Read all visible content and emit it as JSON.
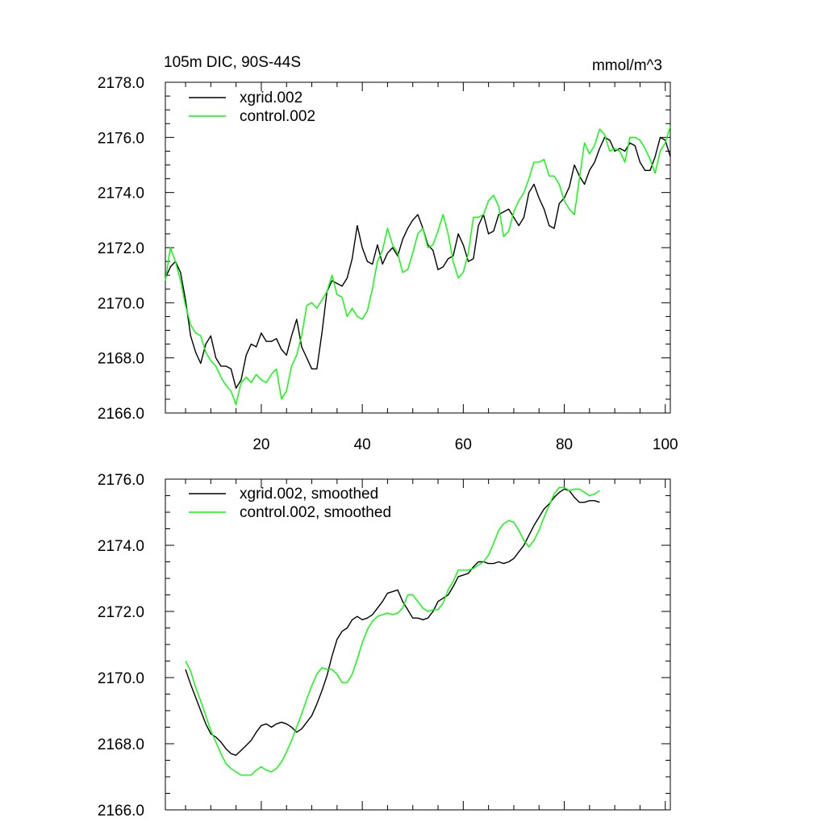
{
  "chart_data": [
    {
      "type": "line",
      "title_left": "105m DIC, 90S-44S",
      "title_right": "mmol/m^3",
      "xlim": [
        1,
        101
      ],
      "ylim": [
        2166.0,
        2178.0
      ],
      "x_major_ticks": [
        20,
        40,
        60,
        80,
        100
      ],
      "x_tick_labels": [
        "20",
        "40",
        "60",
        "80",
        "100"
      ],
      "y_major_ticks": [
        2166,
        2168,
        2170,
        2172,
        2174,
        2176,
        2178
      ],
      "y_tick_labels": [
        "2166.0",
        "2168.0",
        "2170.0",
        "2172.0",
        "2174.0",
        "2176.0",
        "2178.0"
      ],
      "series": [
        {
          "name": "xgrid.002",
          "color": "#000000",
          "x_start": 1,
          "values": [
            2170.9,
            2171.3,
            2171.5,
            2171.1,
            2170.1,
            2168.8,
            2168.2,
            2167.8,
            2168.5,
            2168.8,
            2168.0,
            2167.7,
            2167.7,
            2167.6,
            2166.9,
            2167.2,
            2168.1,
            2168.5,
            2168.4,
            2168.9,
            2168.6,
            2168.6,
            2168.7,
            2168.3,
            2168.1,
            2168.8,
            2169.4,
            2168.4,
            2168.0,
            2167.6,
            2167.6,
            2168.9,
            2170.4,
            2170.8,
            2170.7,
            2170.6,
            2170.9,
            2171.6,
            2172.8,
            2172.0,
            2171.5,
            2171.4,
            2172.1,
            2171.4,
            2171.8,
            2172.0,
            2171.7,
            2172.3,
            2172.7,
            2173.0,
            2173.2,
            2172.7,
            2172.1,
            2171.9,
            2171.2,
            2171.3,
            2171.6,
            2171.7,
            2172.5,
            2172.1,
            2171.5,
            2171.6,
            2172.8,
            2173.2,
            2172.5,
            2172.6,
            2173.2,
            2173.3,
            2173.4,
            2173.1,
            2172.8,
            2173.1,
            2174.0,
            2174.3,
            2173.8,
            2173.4,
            2172.8,
            2172.7,
            2173.6,
            2173.8,
            2174.2,
            2175.0,
            2174.6,
            2174.3,
            2174.8,
            2175.1,
            2175.6,
            2176.0,
            2175.9,
            2175.5,
            2175.6,
            2175.5,
            2175.8,
            2175.7,
            2175.1,
            2174.8,
            2174.8,
            2175.3,
            2176.0,
            2175.9,
            2175.3
          ]
        },
        {
          "name": "control.002",
          "color": "#00ff00",
          "x_start": 1,
          "values": [
            2170.8,
            2172.0,
            2171.5,
            2170.8,
            2169.9,
            2169.2,
            2168.9,
            2168.8,
            2168.2,
            2167.9,
            2167.7,
            2167.3,
            2167.0,
            2166.8,
            2166.3,
            2167.1,
            2167.3,
            2167.1,
            2167.4,
            2167.2,
            2167.1,
            2167.4,
            2167.6,
            2166.5,
            2166.8,
            2167.7,
            2168.1,
            2168.8,
            2169.9,
            2170.0,
            2169.8,
            2170.1,
            2170.4,
            2171.0,
            2170.3,
            2170.2,
            2169.5,
            2169.8,
            2169.5,
            2169.4,
            2169.7,
            2170.5,
            2171.5,
            2171.9,
            2172.7,
            2172.1,
            2171.8,
            2171.1,
            2171.2,
            2171.8,
            2172.5,
            2172.7,
            2172.0,
            2172.1,
            2172.6,
            2173.2,
            2172.5,
            2171.5,
            2170.9,
            2171.1,
            2171.8,
            2173.1,
            2173.1,
            2173.2,
            2173.7,
            2173.9,
            2173.5,
            2172.4,
            2172.6,
            2173.3,
            2173.7,
            2174.0,
            2174.5,
            2175.1,
            2175.1,
            2175.2,
            2174.6,
            2174.6,
            2174.3,
            2173.7,
            2173.4,
            2173.2,
            2174.5,
            2175.8,
            2175.4,
            2175.7,
            2176.3,
            2176.1,
            2175.5,
            2175.6,
            2175.5,
            2175.1,
            2176.0,
            2176.0,
            2175.9,
            2175.6,
            2175.2,
            2174.7,
            2175.5,
            2175.8,
            2176.4
          ]
        }
      ]
    },
    {
      "type": "line",
      "xlim": [
        1,
        101
      ],
      "ylim": [
        2166.0,
        2176.0
      ],
      "x_major_ticks": [
        20,
        40,
        60,
        80,
        100
      ],
      "y_major_ticks": [
        2166,
        2168,
        2170,
        2172,
        2174,
        2176
      ],
      "y_tick_labels": [
        "2166.0",
        "2168.0",
        "2170.0",
        "2172.0",
        "2174.0",
        "2176.0"
      ],
      "series": [
        {
          "name": "xgrid.002, smoothed",
          "color": "#000000",
          "x_start": 5,
          "values": [
            2170.25,
            2169.8,
            2169.4,
            2169.0,
            2168.6,
            2168.3,
            2168.2,
            2168.05,
            2167.85,
            2167.7,
            2167.65,
            2167.8,
            2167.95,
            2168.1,
            2168.35,
            2168.55,
            2168.6,
            2168.5,
            2168.6,
            2168.65,
            2168.6,
            2168.5,
            2168.35,
            2168.45,
            2168.65,
            2168.85,
            2169.2,
            2169.6,
            2170.05,
            2170.65,
            2171.15,
            2171.4,
            2171.5,
            2171.75,
            2171.85,
            2171.75,
            2171.8,
            2171.9,
            2172.1,
            2172.3,
            2172.55,
            2172.6,
            2172.65,
            2172.3,
            2172.05,
            2171.8,
            2171.8,
            2171.75,
            2171.8,
            2172.0,
            2172.3,
            2172.4,
            2172.5,
            2172.75,
            2173.05,
            2173.1,
            2173.15,
            2173.35,
            2173.5,
            2173.5,
            2173.45,
            2173.45,
            2173.5,
            2173.45,
            2173.5,
            2173.6,
            2173.8,
            2174.0,
            2174.3,
            2174.6,
            2174.85,
            2175.1,
            2175.25,
            2175.45,
            2175.6,
            2175.7,
            2175.65,
            2175.45,
            2175.3,
            2175.3,
            2175.35,
            2175.35,
            2175.3
          ]
        },
        {
          "name": "control.002, smoothed",
          "color": "#00ff00",
          "x_start": 5,
          "values": [
            2170.5,
            2170.2,
            2169.7,
            2169.3,
            2168.85,
            2168.4,
            2168.05,
            2167.7,
            2167.4,
            2167.25,
            2167.15,
            2167.05,
            2167.05,
            2167.05,
            2167.2,
            2167.3,
            2167.2,
            2167.15,
            2167.25,
            2167.45,
            2167.75,
            2168.1,
            2168.5,
            2168.9,
            2169.35,
            2169.75,
            2170.1,
            2170.3,
            2170.25,
            2170.25,
            2170.1,
            2169.85,
            2169.85,
            2170.1,
            2170.55,
            2171.05,
            2171.45,
            2171.7,
            2171.85,
            2171.9,
            2171.95,
            2171.9,
            2171.95,
            2172.1,
            2172.5,
            2172.5,
            2172.3,
            2172.1,
            2172.0,
            2172.05,
            2172.05,
            2172.25,
            2172.65,
            2172.9,
            2173.25,
            2173.25,
            2173.25,
            2173.3,
            2173.4,
            2173.5,
            2173.7,
            2174.05,
            2174.45,
            2174.65,
            2174.75,
            2174.7,
            2174.45,
            2174.15,
            2173.95,
            2174.15,
            2174.45,
            2174.85,
            2175.2,
            2175.55,
            2175.75,
            2175.75,
            2175.65,
            2175.7,
            2175.7,
            2175.6,
            2175.5,
            2175.55,
            2175.65
          ]
        }
      ]
    }
  ]
}
